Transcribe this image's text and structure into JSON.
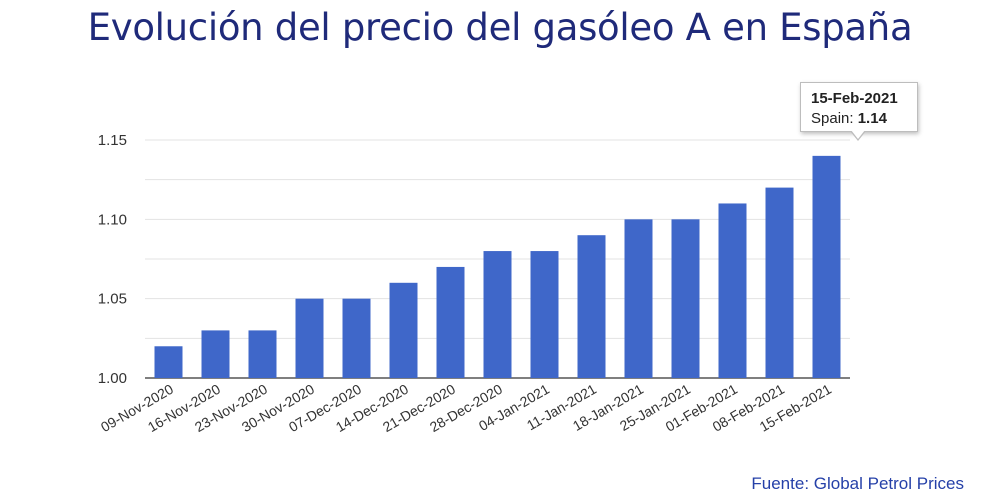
{
  "title": "Evolución del precio del gasóleo A en España",
  "source": "Fuente: Global Petrol Prices",
  "tooltip": {
    "date": "15-Feb-2021",
    "series_label": "Spain:",
    "value": "1.14"
  },
  "colors": {
    "bar": "#3f67c9",
    "title": "#1f2a7a",
    "grid": "#e3e3e3"
  },
  "chart_data": {
    "type": "bar",
    "title": "Evolución del precio del gasóleo A en España",
    "xlabel": "",
    "ylabel": "",
    "ylim": [
      1.0,
      1.16
    ],
    "yticks": [
      1.0,
      1.05,
      1.1,
      1.15
    ],
    "ytick_labels": [
      "1.00",
      "1.05",
      "1.10",
      "1.15"
    ],
    "grid": true,
    "categories": [
      "09-Nov-2020",
      "16-Nov-2020",
      "23-Nov-2020",
      "30-Nov-2020",
      "07-Dec-2020",
      "14-Dec-2020",
      "21-Dec-2020",
      "28-Dec-2020",
      "04-Jan-2021",
      "11-Jan-2021",
      "18-Jan-2021",
      "25-Jan-2021",
      "01-Feb-2021",
      "08-Feb-2021",
      "15-Feb-2021"
    ],
    "values": [
      1.02,
      1.03,
      1.03,
      1.05,
      1.05,
      1.06,
      1.07,
      1.08,
      1.08,
      1.09,
      1.1,
      1.1,
      1.11,
      1.12,
      1.14
    ]
  }
}
